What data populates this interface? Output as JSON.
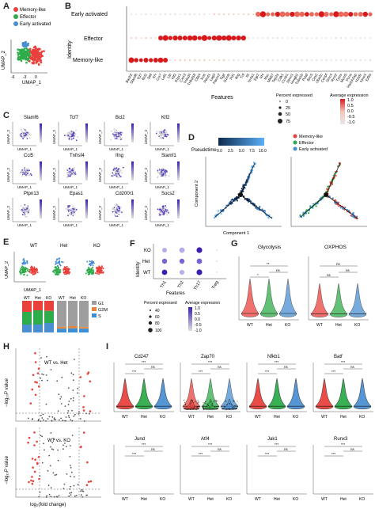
{
  "panel_labels": {
    "A": "A",
    "B": "B",
    "C": "C",
    "D": "D",
    "E": "E",
    "F": "F",
    "G": "G",
    "H": "H",
    "I": "I"
  },
  "panelA": {
    "legend": [
      "Memory-like",
      "Effector",
      "Early activated"
    ],
    "colors": [
      "#e8413c",
      "#2eab4a",
      "#4a8fd1"
    ],
    "xlabel": "UMAP_1",
    "ylabel": "UMAP_2",
    "xticks": [
      "-6",
      "-3",
      "0"
    ],
    "yticks": [
      "3",
      "0",
      "-3"
    ]
  },
  "panelB": {
    "ylabel": "Identity",
    "xlabel": "Features",
    "rows": [
      "Early activated",
      "Effector",
      "Memory-like"
    ],
    "genes": [
      "Bach2",
      "Slamf6",
      "Tcf7",
      "Bcl2",
      "Sell",
      "Il7r",
      "Ccr7",
      "Lef1",
      "Ltb",
      "Klf2",
      "S1pr1",
      "Cxcr3",
      "Tnfrsf4",
      "Tnfrsf18",
      "Ctla4",
      "Icos",
      "Pdcd1",
      "Lag3",
      "Havcr2",
      "Tigit",
      "Gzmb",
      "Prf1",
      "Ifng",
      "Tnf",
      "Il2",
      "Nr4a1",
      "Egr2",
      "Irf4",
      "Myc",
      "Mki67",
      "Top2a",
      "Cdk1",
      "Ccnb1",
      "Stmn1",
      "Hmgb2",
      "Tuba1b",
      "Pclaf",
      "Birc5",
      "Cks2",
      "Ube2c",
      "Cenpf",
      "Smc4",
      "Rrm2",
      "Tyms",
      "Mcm5",
      "Pcna",
      "Hist1h2ap",
      "H2afz",
      "Nme1",
      "Eif5a"
    ],
    "size_legend_title": "Percent expressed",
    "size_legend": [
      "0",
      "25",
      "50",
      "75"
    ],
    "color_legend_title": "Average expression",
    "color_legend": [
      "1.0",
      "0.5",
      "0.0",
      "-0.5",
      "-1.0"
    ]
  },
  "panelC": {
    "genes": [
      "Slamf6",
      "Tcf7",
      "Bcl2",
      "Klf2",
      "Ccl5",
      "Tnfrsf4",
      "Ifng",
      "Slamf1",
      "Ptpn13",
      "Epas1",
      "Cd200r1",
      "Socs2"
    ],
    "xlabel": "UMAP_1",
    "ylabel": "UMAP_2"
  },
  "panelD": {
    "pseudotime_label": "Pseudotime",
    "pseudotime_ticks": [
      "0.0",
      "2.5",
      "5.0",
      "7.5",
      "10.0"
    ],
    "legend": [
      "Memory-like",
      "Effector",
      "Early activated"
    ],
    "xlabel": "Component 1",
    "ylabel": "Component 2"
  },
  "panelE": {
    "titles": [
      "WT",
      "Het",
      "KO"
    ],
    "xlabel": "UMAP_1",
    "ylabel": "UMAP_2",
    "bar_xlabels": [
      "WT",
      "Het",
      "KO"
    ],
    "phase_legend": [
      "G1",
      "G2M",
      "S"
    ],
    "phase_colors": [
      "#9e9e9e",
      "#e8843c",
      "#3a8fd6"
    ]
  },
  "panelF": {
    "ylabel": "Identity",
    "rows": [
      "KO",
      "Het",
      "WT"
    ],
    "cols": [
      "Th1",
      "Th2",
      "Th17",
      "Treg"
    ],
    "xlabel": "Features",
    "size_legend_title": "Percent expressed",
    "size_legend": [
      "40",
      "60",
      "80",
      "100"
    ],
    "color_legend_title": "Average expression",
    "color_legend": [
      "1.0",
      "0.5",
      "0.0",
      "-0.5",
      "-1.0"
    ]
  },
  "panelG": {
    "titles": [
      "Glycolysis",
      "OXPHOS"
    ],
    "xlabels": [
      "WT",
      "Het",
      "KO"
    ],
    "sig": [
      "ns",
      "*",
      "**"
    ]
  },
  "panelH": {
    "titles": [
      "WT vs. Het",
      "WT vs. KO"
    ],
    "xlabel": "log₂(fold change)",
    "ylabel": "−log₁₀P value"
  },
  "panelI": {
    "genes": [
      "Cd247",
      "Zap70",
      "Nfkb1",
      "Batf",
      "Jund",
      "Atf4",
      "Jak1",
      "Runx3"
    ],
    "xlabels": [
      "WT",
      "Het",
      "KO"
    ],
    "sig": [
      "ns",
      "*",
      "**",
      "***"
    ]
  },
  "colors": {
    "wt": "#e8413c",
    "het": "#2eab4a",
    "ko": "#4a8fd1",
    "purple": "#5a3fc0",
    "grey": "#cfcfcf"
  }
}
